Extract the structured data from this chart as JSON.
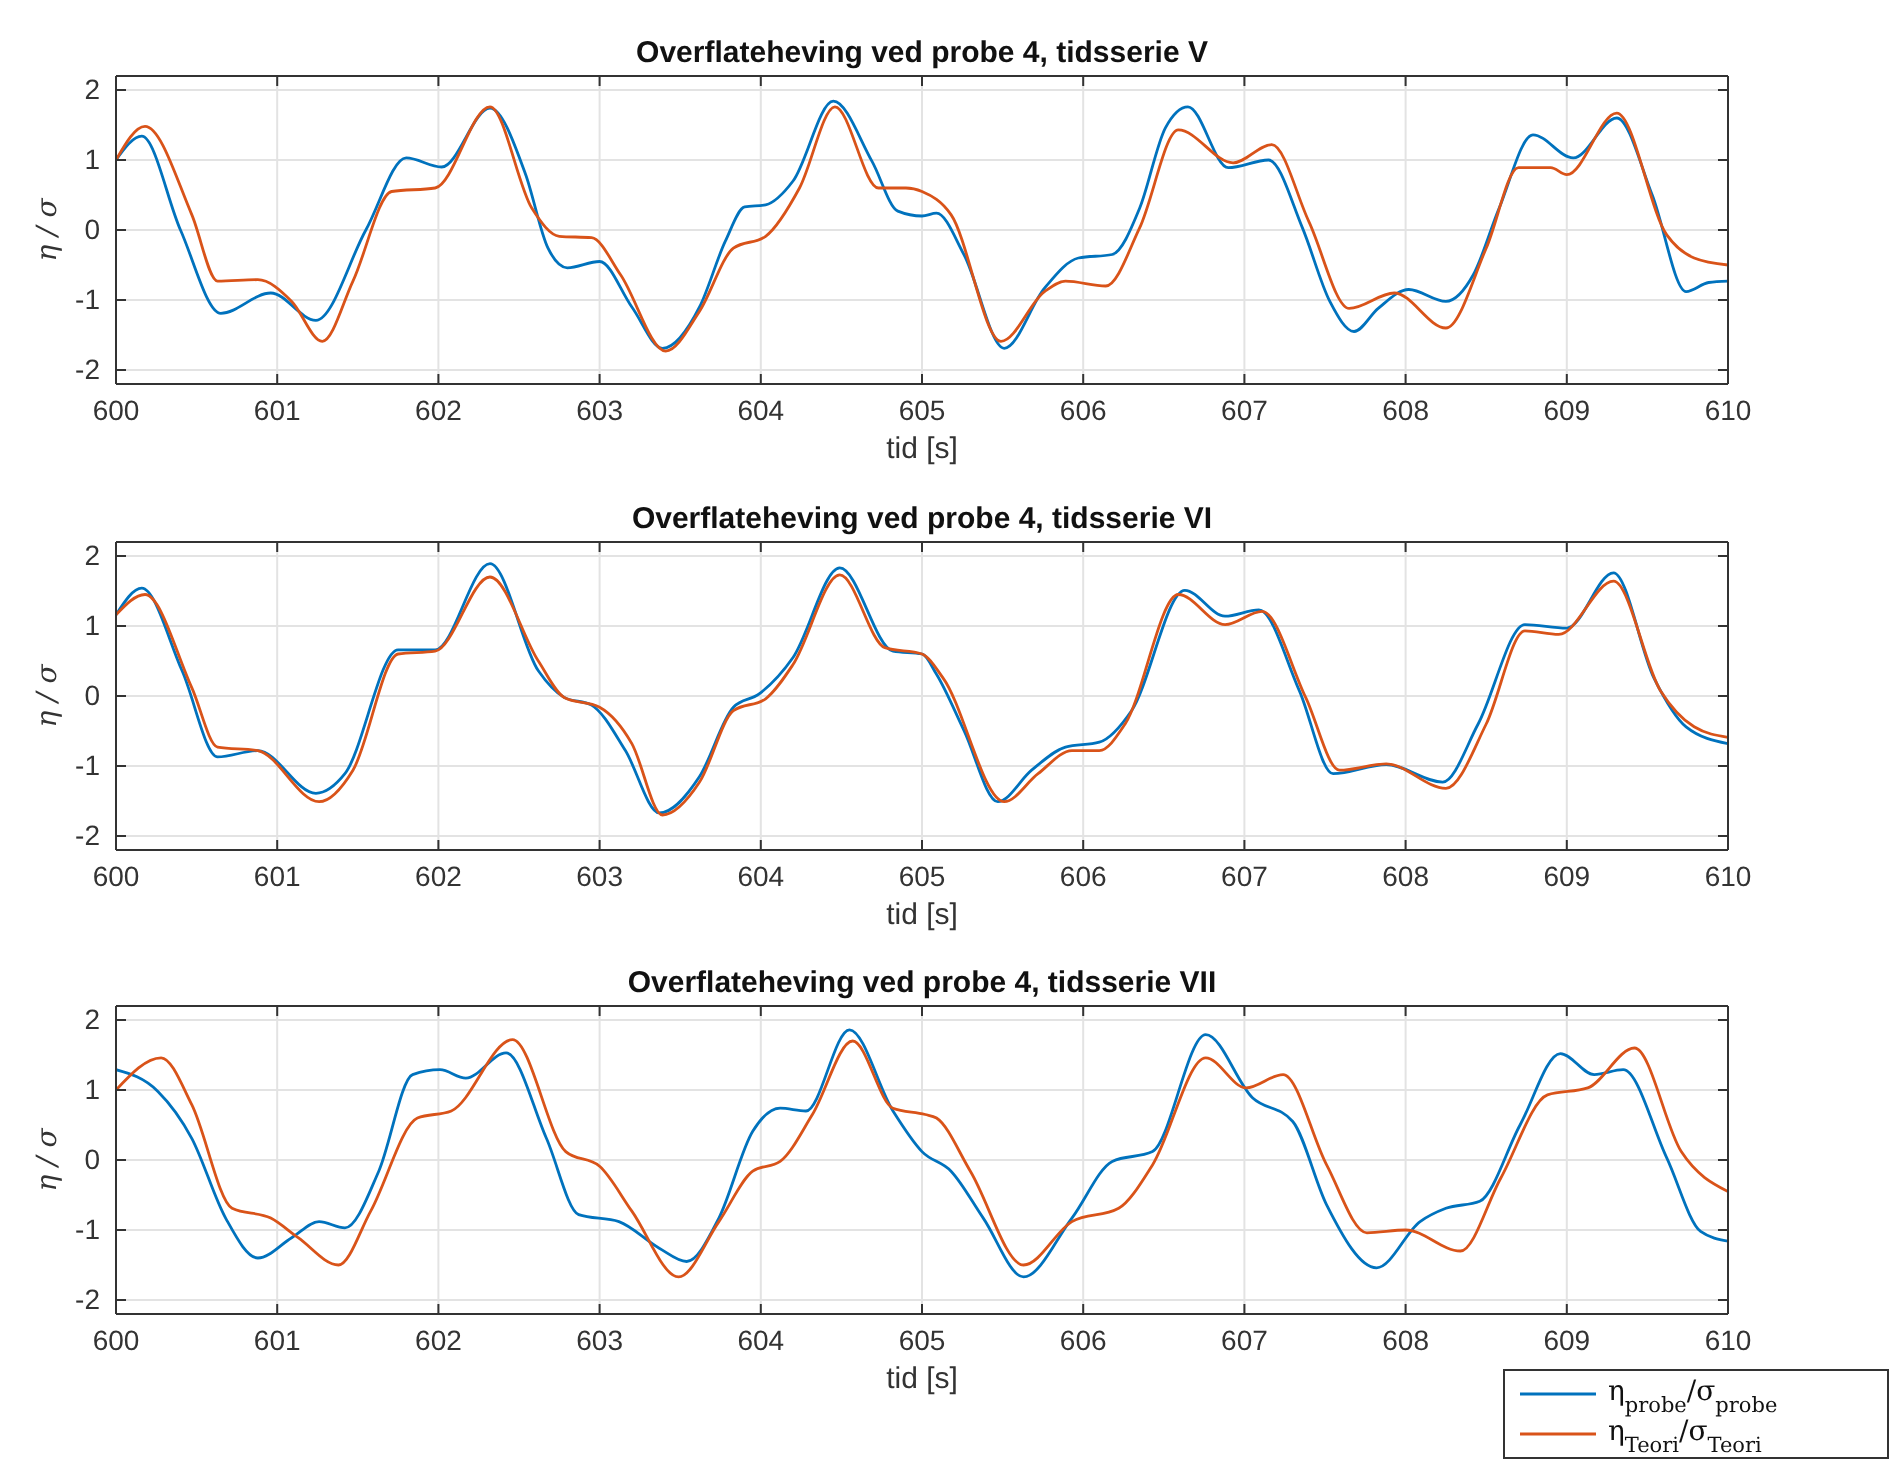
{
  "chart_data": [
    {
      "type": "line",
      "title": "Overflateheving ved probe 4, tidsserie V",
      "xlabel": "tid [s]",
      "ylabel": "η / σ",
      "xlim": [
        600,
        610
      ],
      "xticks": [
        600,
        601,
        602,
        603,
        604,
        605,
        606,
        607,
        608,
        609,
        610
      ],
      "ylim": [
        -2.2,
        2.2
      ],
      "yticks": [
        -2,
        -1,
        0,
        1,
        2
      ],
      "grid": true,
      "line_style": "solid",
      "series": [
        {
          "color": "#0072bd",
          "x": [
            600,
            600.16,
            600.4,
            600.65,
            600.96,
            601.24,
            601.55,
            601.8,
            602.02,
            602.32,
            602.54,
            602.68,
            602.8,
            603,
            603.2,
            603.39,
            603.62,
            603.78,
            603.9,
            604.03,
            604.2,
            604.45,
            604.69,
            604.85,
            605,
            605.09,
            605.26,
            605.51,
            605.76,
            605.97,
            606.18,
            606.35,
            606.51,
            606.65,
            606.9,
            607.15,
            607.36,
            607.53,
            607.68,
            607.83,
            608.02,
            608.25,
            608.42,
            608.58,
            608.79,
            609.04,
            609.31,
            609.53,
            609.74,
            609.88,
            610
          ],
          "values": [
            1.0,
            1.34,
            0,
            -1.19,
            -0.9,
            -1.29,
            0,
            1.03,
            0.9,
            1.74,
            0.8,
            -0.26,
            -0.54,
            -0.45,
            -1.1,
            -1.69,
            -1.1,
            -0.16,
            0.33,
            0.36,
            0.7,
            1.84,
            0.98,
            0.27,
            0.2,
            0.24,
            -0.35,
            -1.69,
            -0.83,
            -0.4,
            -0.35,
            0.31,
            1.46,
            1.76,
            0.89,
            1.0,
            0.03,
            -1.02,
            -1.45,
            -1.12,
            -0.85,
            -1.02,
            -0.64,
            0.31,
            1.36,
            1.03,
            1.6,
            0.5,
            -0.88,
            -0.75,
            -0.73
          ]
        },
        {
          "color": "#d95319",
          "x": [
            600,
            600.18,
            600.47,
            600.63,
            600.88,
            601.09,
            601.28,
            601.47,
            601.71,
            601.98,
            602.32,
            602.58,
            602.75,
            602.95,
            603.13,
            603.41,
            603.62,
            603.83,
            604.03,
            604.24,
            604.46,
            604.73,
            604.9,
            605,
            605.18,
            605.49,
            605.76,
            605.89,
            606.14,
            606.35,
            606.59,
            606.93,
            607.17,
            607.4,
            607.65,
            607.93,
            608.25,
            608.5,
            608.7,
            608.9,
            609,
            609.31,
            609.62,
            609.79,
            610
          ],
          "values": [
            1.0,
            1.48,
            0.22,
            -0.73,
            -0.71,
            -1.02,
            -1.59,
            -0.73,
            0.55,
            0.6,
            1.76,
            0.31,
            -0.09,
            -0.11,
            -0.64,
            -1.73,
            -1.16,
            -0.26,
            -0.09,
            0.6,
            1.76,
            0.6,
            0.6,
            0.55,
            0.22,
            -1.59,
            -0.88,
            -0.73,
            -0.8,
            0.03,
            1.43,
            0.96,
            1.22,
            0.12,
            -1.12,
            -0.9,
            -1.4,
            -0.26,
            0.89,
            0.89,
            0.79,
            1.67,
            -0.07,
            -0.4,
            -0.5
          ]
        }
      ]
    },
    {
      "type": "line",
      "title": "Overflateheving ved probe 4, tidsserie VI",
      "xlabel": "tid [s]",
      "ylabel": "η / σ",
      "xlim": [
        600,
        610
      ],
      "xticks": [
        600,
        601,
        602,
        603,
        604,
        605,
        606,
        607,
        608,
        609,
        610
      ],
      "ylim": [
        -2.2,
        2.2
      ],
      "yticks": [
        -2,
        -1,
        0,
        1,
        2
      ],
      "grid": true,
      "line_style": "solid",
      "series": [
        {
          "color": "#0072bd",
          "x": [
            600,
            600.16,
            600.41,
            600.63,
            600.88,
            601.24,
            601.42,
            601.75,
            601.98,
            602.32,
            602.62,
            602.78,
            602.95,
            603.16,
            603.37,
            603.62,
            603.83,
            603.99,
            604.2,
            604.49,
            604.82,
            605,
            605.09,
            605.26,
            605.47,
            605.68,
            605.89,
            606.1,
            606.3,
            606.63,
            606.88,
            607.09,
            607.34,
            607.55,
            607.88,
            608.23,
            608.45,
            608.74,
            609,
            609.29,
            609.54,
            609.74,
            610
          ],
          "values": [
            1.16,
            1.54,
            0.36,
            -0.87,
            -0.78,
            -1.39,
            -1.11,
            0.66,
            0.66,
            1.89,
            0.36,
            -0.02,
            -0.13,
            -0.78,
            -1.67,
            -1.15,
            -0.16,
            0.03,
            0.55,
            1.83,
            0.64,
            0.6,
            0.31,
            -0.49,
            -1.51,
            -1.06,
            -0.73,
            -0.66,
            -0.21,
            1.51,
            1.14,
            1.23,
            0.08,
            -1.11,
            -0.98,
            -1.23,
            -0.4,
            1.02,
            0.97,
            1.76,
            0.26,
            -0.44,
            -0.68
          ]
        },
        {
          "color": "#d95319",
          "x": [
            600,
            600.18,
            600.47,
            600.63,
            600.88,
            601.26,
            601.47,
            601.75,
            601.98,
            602.32,
            602.62,
            602.78,
            603,
            603.2,
            603.39,
            603.62,
            603.83,
            604.03,
            604.2,
            604.49,
            604.77,
            605,
            605.13,
            605.51,
            605.72,
            605.93,
            606.1,
            606.26,
            606.59,
            606.88,
            607.11,
            607.38,
            607.59,
            607.88,
            608.25,
            608.5,
            608.74,
            608.95,
            609.29,
            609.58,
            609.79,
            610
          ],
          "values": [
            1.16,
            1.45,
            0.12,
            -0.73,
            -0.78,
            -1.51,
            -1.06,
            0.6,
            0.64,
            1.7,
            0.5,
            -0.02,
            -0.16,
            -0.68,
            -1.7,
            -1.23,
            -0.21,
            -0.04,
            0.45,
            1.73,
            0.69,
            0.6,
            0.26,
            -1.51,
            -1.11,
            -0.78,
            -0.78,
            -0.4,
            1.45,
            1.02,
            1.21,
            -0.02,
            -1.06,
            -0.97,
            -1.32,
            -0.4,
            0.93,
            0.88,
            1.64,
            0.08,
            -0.44,
            -0.59
          ]
        }
      ]
    },
    {
      "type": "line",
      "title": "Overflateheving ved probe 4, tidsserie VII",
      "xlabel": "tid [s]",
      "ylabel": "η / σ",
      "xlim": [
        600,
        610
      ],
      "xticks": [
        600,
        601,
        602,
        603,
        604,
        605,
        606,
        607,
        608,
        609,
        610
      ],
      "ylim": [
        -2.2,
        2.2
      ],
      "yticks": [
        -2,
        -1,
        0,
        1,
        2
      ],
      "grid": true,
      "line_style": "solid",
      "legend": "bottom right",
      "series": [
        {
          "name": "η$_{probe}$/σ$_{probe}$",
          "color": "#0072bd",
          "x": [
            600,
            600.26,
            600.47,
            600.68,
            600.88,
            601.09,
            601.26,
            601.42,
            601.63,
            601.84,
            602.01,
            602.17,
            602.42,
            602.67,
            602.87,
            603.12,
            603.37,
            603.54,
            603.74,
            603.95,
            604.12,
            604.28,
            604.55,
            604.82,
            605,
            605.18,
            605.38,
            605.63,
            605.93,
            606.18,
            606.43,
            606.76,
            607.05,
            607.3,
            607.51,
            607.82,
            608.09,
            608.25,
            608.46,
            608.71,
            608.96,
            609.17,
            609.35,
            609.62,
            609.83,
            610
          ],
          "values": [
            1.29,
            0.98,
            0.31,
            -0.83,
            -1.4,
            -1.11,
            -0.88,
            -0.97,
            -0.16,
            1.22,
            1.29,
            1.17,
            1.53,
            0.31,
            -0.78,
            -0.88,
            -1.26,
            -1.45,
            -0.83,
            0.41,
            0.74,
            0.7,
            1.86,
            0.7,
            0.12,
            -0.16,
            -0.83,
            -1.67,
            -0.83,
            -0.02,
            0.12,
            1.79,
            0.89,
            0.55,
            -0.64,
            -1.54,
            -0.88,
            -0.69,
            -0.59,
            0.5,
            1.52,
            1.22,
            1.29,
            0.03,
            -1.02,
            -1.16
          ]
        },
        {
          "name": "η$_{Teori}$/σ$_{Teori}$",
          "color": "#d95319",
          "x": [
            600,
            600.28,
            600.47,
            600.72,
            600.96,
            601.13,
            601.38,
            601.58,
            601.87,
            602.08,
            602.46,
            602.79,
            603,
            603.2,
            603.49,
            603.74,
            603.95,
            604.12,
            604.32,
            604.57,
            604.82,
            605.02,
            605.09,
            605.3,
            605.63,
            605.93,
            606.22,
            606.43,
            606.76,
            607.01,
            607.24,
            607.51,
            607.76,
            608,
            608.34,
            608.59,
            608.88,
            609.13,
            609.42,
            609.71,
            610
          ],
          "values": [
            1.0,
            1.46,
            0.79,
            -0.69,
            -0.83,
            -1.11,
            -1.5,
            -0.73,
            0.6,
            0.7,
            1.72,
            0.12,
            -0.09,
            -0.73,
            -1.67,
            -0.88,
            -0.16,
            -0.02,
            0.65,
            1.7,
            0.74,
            0.65,
            0.6,
            -0.16,
            -1.5,
            -0.88,
            -0.69,
            -0.07,
            1.46,
            1.03,
            1.22,
            -0.07,
            -1.04,
            -1.0,
            -1.3,
            -0.26,
            0.93,
            1.03,
            1.6,
            0.12,
            -0.45
          ]
        }
      ]
    }
  ]
}
